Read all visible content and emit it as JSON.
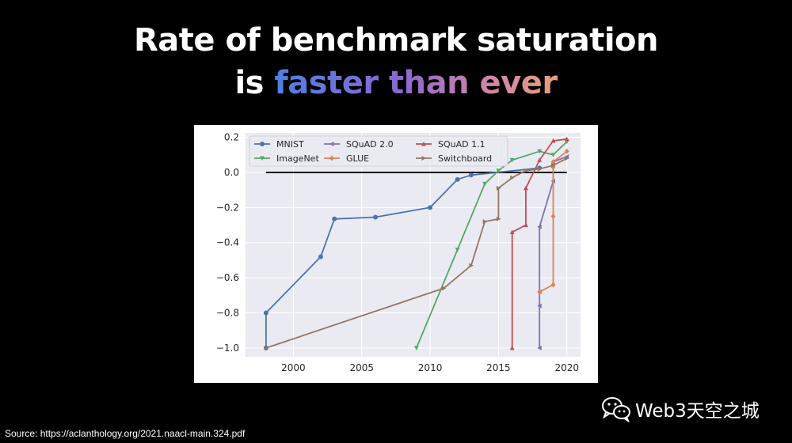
{
  "title": {
    "line1": "Rate of benchmark saturation",
    "line2_prefix": "is ",
    "line2_highlight": "faster than ever"
  },
  "source": "Source: https://aclanthology.org/2021.naacl-main.324.pdf",
  "watermark": {
    "text": "Web3天空之城",
    "icon": "wechat-icon"
  },
  "colors": {
    "MNIST": "#4c72b0",
    "GLUE": "#dd8452",
    "ImageNet": "#55a868",
    "SQuAD 1.1": "#c44e52",
    "SQuAD 2.0": "#8172b3",
    "Switchboard": "#937860",
    "plot_bg": "#eaeaf2",
    "grid": "#ffffff",
    "zero_line": "#000000"
  },
  "chart_data": {
    "type": "line",
    "title": "",
    "xlabel": "",
    "ylabel": "",
    "xlim": [
      1996.5,
      2021
    ],
    "ylim": [
      -1.05,
      0.225
    ],
    "xticks": [
      2000,
      2005,
      2010,
      2015,
      2020
    ],
    "yticks": [
      0.2,
      0.0,
      -0.2,
      -0.4,
      -0.6,
      -0.8,
      -1.0
    ],
    "xtick_labels": [
      "2000",
      "2005",
      "2010",
      "2015",
      "2020"
    ],
    "ytick_labels": [
      "0.2",
      "0.0",
      "−0.2",
      "−0.4",
      "−0.6",
      "−0.8",
      "−1.0"
    ],
    "grid": true,
    "legend_position": "top-left",
    "reference_line": {
      "y": 0.0,
      "x_range": [
        1998,
        2020
      ]
    },
    "series": [
      {
        "name": "MNIST",
        "marker": "circle",
        "x": [
          1998,
          1998,
          2002,
          2003,
          2006,
          2010,
          2012,
          2013,
          2018
        ],
        "y": [
          -1.0,
          -0.8,
          -0.48,
          -0.265,
          -0.255,
          -0.2,
          -0.04,
          -0.015,
          0.025
        ]
      },
      {
        "name": "ImageNet",
        "marker": "triangle-down",
        "x": [
          2009,
          2012,
          2014,
          2015,
          2016,
          2018,
          2019,
          2020
        ],
        "y": [
          -1.0,
          -0.44,
          -0.065,
          0.01,
          0.07,
          0.12,
          0.1,
          0.175
        ]
      },
      {
        "name": "SQuAD 2.0",
        "marker": "triangle-left",
        "x": [
          2018,
          2018,
          2018,
          2018,
          2019,
          2019,
          2019,
          2020
        ],
        "y": [
          -1.0,
          -0.76,
          -0.68,
          -0.31,
          -0.05,
          0.05,
          0.06,
          0.09
        ]
      },
      {
        "name": "GLUE",
        "marker": "diamond",
        "x": [
          2018,
          2019,
          2019,
          2019,
          2019,
          2020
        ],
        "y": [
          -0.68,
          -0.64,
          -0.25,
          0.03,
          0.06,
          0.12
        ]
      },
      {
        "name": "SQuAD 1.1",
        "marker": "triangle-up",
        "x": [
          2016,
          2016,
          2017,
          2017,
          2018,
          2019,
          2020
        ],
        "y": [
          -1.0,
          -0.34,
          -0.3,
          -0.09,
          0.07,
          0.18,
          0.19
        ]
      },
      {
        "name": "Switchboard",
        "marker": "triangle-right",
        "x": [
          1998,
          2011,
          2013,
          2014,
          2015,
          2015,
          2016,
          2017,
          2018,
          2019,
          2020
        ],
        "y": [
          -1.0,
          -0.66,
          -0.53,
          -0.28,
          -0.265,
          -0.09,
          -0.03,
          0.01,
          0.02,
          0.04,
          0.08
        ]
      }
    ]
  }
}
